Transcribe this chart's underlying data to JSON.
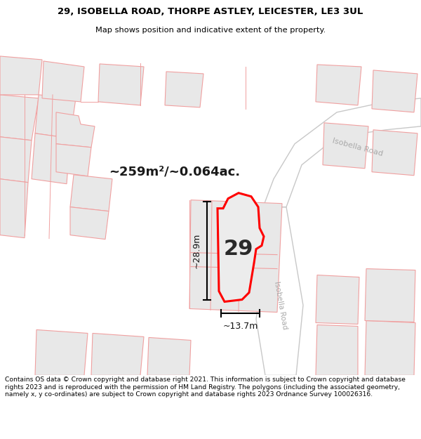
{
  "title_line1": "29, ISOBELLA ROAD, THORPE ASTLEY, LEICESTER, LE3 3UL",
  "title_line2": "Map shows position and indicative extent of the property.",
  "area_text": "~259m²/~0.064ac.",
  "label_number": "29",
  "dim_height": "~28.9m",
  "dim_width": "~13.7m",
  "road_label_diag": "Isobella Road",
  "road_label_top": "Isobella Road",
  "footer_text": "Contains OS data © Crown copyright and database right 2021. This information is subject to Crown copyright and database rights 2023 and is reproduced with the permission of HM Land Registry. The polygons (including the associated geometry, namely x, y co-ordinates) are subject to Crown copyright and database rights 2023 Ordnance Survey 100026316.",
  "bg_color": "#ffffff",
  "map_bg": "#ffffff",
  "block_fill": "#e8e8e8",
  "block_outline": "#f0a0a0",
  "road_fill": "#ffffff",
  "road_outline": "#c8c8c8",
  "plot_fill": "#ececec",
  "plot_outline": "#ff0000",
  "text_color": "#1a1a1a",
  "road_text_color": "#aaaaaa",
  "dim_color": "#111111"
}
